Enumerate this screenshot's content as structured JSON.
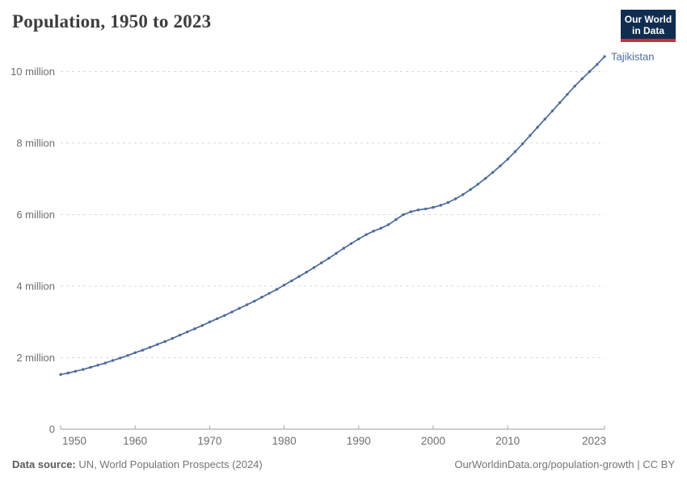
{
  "header": {
    "title": "Population, 1950 to 2023",
    "logo": {
      "line1": "Our World",
      "line2": "in Data",
      "bg_color": "#102d50",
      "accent_color": "#c5303e"
    }
  },
  "chart_data": {
    "type": "line",
    "title": "Population, 1950 to 2023",
    "grid": "dashed-horizontal",
    "legend_position": "end-of-line-label",
    "xlim": [
      1950,
      2023
    ],
    "ylim_millions": [
      0,
      10.55
    ],
    "x_ticks": [
      1950,
      1960,
      1970,
      1980,
      1990,
      2000,
      2010,
      2023
    ],
    "y_ticks": [
      {
        "value_millions": 0,
        "label": "0"
      },
      {
        "value_millions": 2,
        "label": "2 million"
      },
      {
        "value_millions": 4,
        "label": "4 million"
      },
      {
        "value_millions": 6,
        "label": "6 million"
      },
      {
        "value_millions": 8,
        "label": "8 million"
      },
      {
        "value_millions": 10,
        "label": "10 million"
      }
    ],
    "x": [
      1950,
      1951,
      1952,
      1953,
      1954,
      1955,
      1956,
      1957,
      1958,
      1959,
      1960,
      1961,
      1962,
      1963,
      1964,
      1965,
      1966,
      1967,
      1968,
      1969,
      1970,
      1971,
      1972,
      1973,
      1974,
      1975,
      1976,
      1977,
      1978,
      1979,
      1980,
      1981,
      1982,
      1983,
      1984,
      1985,
      1986,
      1987,
      1988,
      1989,
      1990,
      1991,
      1992,
      1993,
      1994,
      1995,
      1996,
      1997,
      1998,
      1999,
      2000,
      2001,
      2002,
      2003,
      2004,
      2005,
      2006,
      2007,
      2008,
      2009,
      2010,
      2011,
      2012,
      2013,
      2014,
      2015,
      2016,
      2017,
      2018,
      2019,
      2020,
      2021,
      2022,
      2023
    ],
    "series": [
      {
        "name": "Tajikistan",
        "color": "#4c6a9c",
        "values_millions": [
          1.53,
          1.57,
          1.62,
          1.67,
          1.73,
          1.79,
          1.85,
          1.92,
          1.99,
          2.06,
          2.14,
          2.21,
          2.29,
          2.37,
          2.45,
          2.54,
          2.63,
          2.72,
          2.81,
          2.9,
          3.0,
          3.09,
          3.18,
          3.28,
          3.38,
          3.48,
          3.58,
          3.69,
          3.8,
          3.91,
          4.03,
          4.15,
          4.27,
          4.39,
          4.52,
          4.65,
          4.78,
          4.92,
          5.06,
          5.19,
          5.32,
          5.44,
          5.54,
          5.62,
          5.72,
          5.86,
          6.0,
          6.08,
          6.13,
          6.16,
          6.2,
          6.26,
          6.34,
          6.44,
          6.56,
          6.7,
          6.85,
          7.01,
          7.18,
          7.36,
          7.55,
          7.76,
          7.98,
          8.21,
          8.44,
          8.67,
          8.9,
          9.13,
          9.36,
          9.59,
          9.8,
          10.0,
          10.2,
          10.42
        ]
      }
    ],
    "colors": {
      "gridline": "#d9d9d9",
      "axis": "#999999",
      "tick": "#aaaaaa",
      "tick_label": "#6e6e6e"
    }
  },
  "footer": {
    "source_label": "Data source:",
    "source_text": " UN, World Population Prospects (2024)",
    "link_text": "OurWorldinData.org/population-growth | CC BY"
  }
}
